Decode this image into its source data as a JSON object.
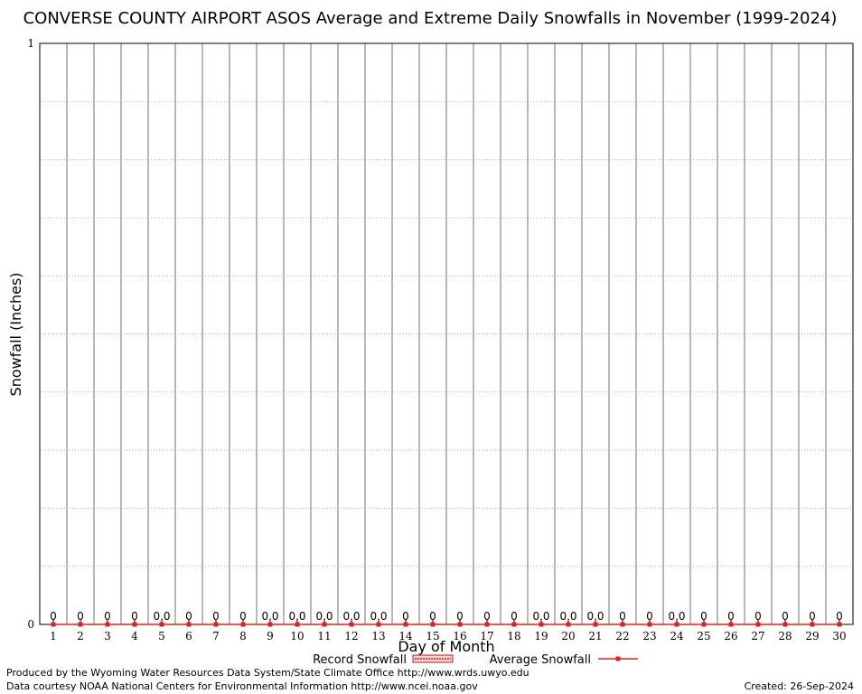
{
  "chart_data": {
    "type": "line",
    "title": "CONVERSE COUNTY AIRPORT ASOS Average and Extreme Daily Snowfalls in November (1999-2024)",
    "xlabel": "Day of Month",
    "ylabel": "Snowfall (Inches)",
    "ylim": [
      0,
      1
    ],
    "y_tick_labels": [
      "0",
      "1"
    ],
    "x": [
      1,
      2,
      3,
      4,
      5,
      6,
      7,
      8,
      9,
      10,
      11,
      12,
      13,
      14,
      15,
      16,
      17,
      18,
      19,
      20,
      21,
      22,
      23,
      24,
      25,
      26,
      27,
      28,
      29,
      30
    ],
    "x_tick_labels": [
      "1",
      "2",
      "3",
      "4",
      "5",
      "6",
      "7",
      "8",
      "9",
      "10",
      "11",
      "12",
      "13",
      "14",
      "15",
      "16",
      "17",
      "18",
      "19",
      "20",
      "21",
      "22",
      "23",
      "24",
      "25",
      "26",
      "27",
      "28",
      "29",
      "30"
    ],
    "grid": true,
    "legend_position": "bottom-center",
    "series": [
      {
        "name": "Record Snowfall",
        "kind": "bar",
        "color": "#b22222",
        "values": [
          0,
          0,
          0,
          0,
          0,
          0,
          0,
          0,
          0,
          0,
          0,
          0,
          0,
          0,
          0,
          0,
          0,
          0,
          0,
          0,
          0,
          0,
          0,
          0,
          0,
          0,
          0,
          0,
          0,
          0
        ]
      },
      {
        "name": "Average Snowfall",
        "kind": "line",
        "color": "#e02020",
        "values": [
          0,
          0,
          0,
          0,
          0,
          0,
          0,
          0,
          0,
          0,
          0,
          0,
          0,
          0,
          0,
          0,
          0,
          0,
          0,
          0,
          0,
          0,
          0,
          0,
          0,
          0,
          0,
          0,
          0,
          0
        ]
      }
    ],
    "data_labels": [
      "0",
      "0",
      "0",
      "0",
      "0.0",
      "0",
      "0",
      "0",
      "0.0",
      "0.0",
      "0.0",
      "0.0",
      "0.0",
      "0",
      "0",
      "0",
      "0",
      "0",
      "0.0",
      "0.0",
      "0.0",
      "0",
      "0",
      "0.0",
      "0",
      "0",
      "0",
      "0",
      "0",
      "0"
    ]
  },
  "footer": {
    "produced_by": "Produced by the Wyoming Water Resources Data System/State Climate Office http://www.wrds.uwyo.edu",
    "courtesy": "Data courtesy NOAA National Centers for Environmental Information http://www.ncei.noaa.gov",
    "created": "Created: 26-Sep-2024"
  },
  "colors": {
    "vertical_gridline": "#a0a0a0",
    "horizontal_gridline": "#b0b0b0",
    "axis": "#000000"
  }
}
